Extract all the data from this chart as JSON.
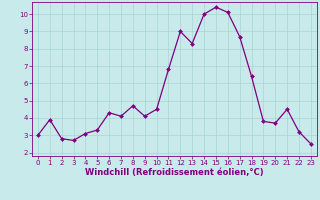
{
  "x": [
    0,
    1,
    2,
    3,
    4,
    5,
    6,
    7,
    8,
    9,
    10,
    11,
    12,
    13,
    14,
    15,
    16,
    17,
    18,
    19,
    20,
    21,
    22,
    23
  ],
  "y": [
    3.0,
    3.9,
    2.8,
    2.7,
    3.1,
    3.3,
    4.3,
    4.1,
    4.7,
    4.1,
    4.5,
    6.8,
    9.0,
    8.3,
    10.0,
    10.4,
    10.1,
    8.7,
    6.4,
    3.8,
    3.7,
    4.5,
    3.2,
    2.5
  ],
  "line_color": "#800080",
  "marker_color": "#800080",
  "bg_color": "#c8eaea",
  "grid_color": "#a8d4d4",
  "xlabel": "Windchill (Refroidissement éolien,°C)",
  "xlim": [
    -0.5,
    23.5
  ],
  "ylim": [
    1.8,
    10.7
  ],
  "yticks": [
    2,
    3,
    4,
    5,
    6,
    7,
    8,
    9,
    10
  ],
  "xticks": [
    0,
    1,
    2,
    3,
    4,
    5,
    6,
    7,
    8,
    9,
    10,
    11,
    12,
    13,
    14,
    15,
    16,
    17,
    18,
    19,
    20,
    21,
    22,
    23
  ],
  "tick_fontsize": 5,
  "xlabel_fontsize": 6,
  "linewidth": 0.9,
  "markersize": 2.0
}
